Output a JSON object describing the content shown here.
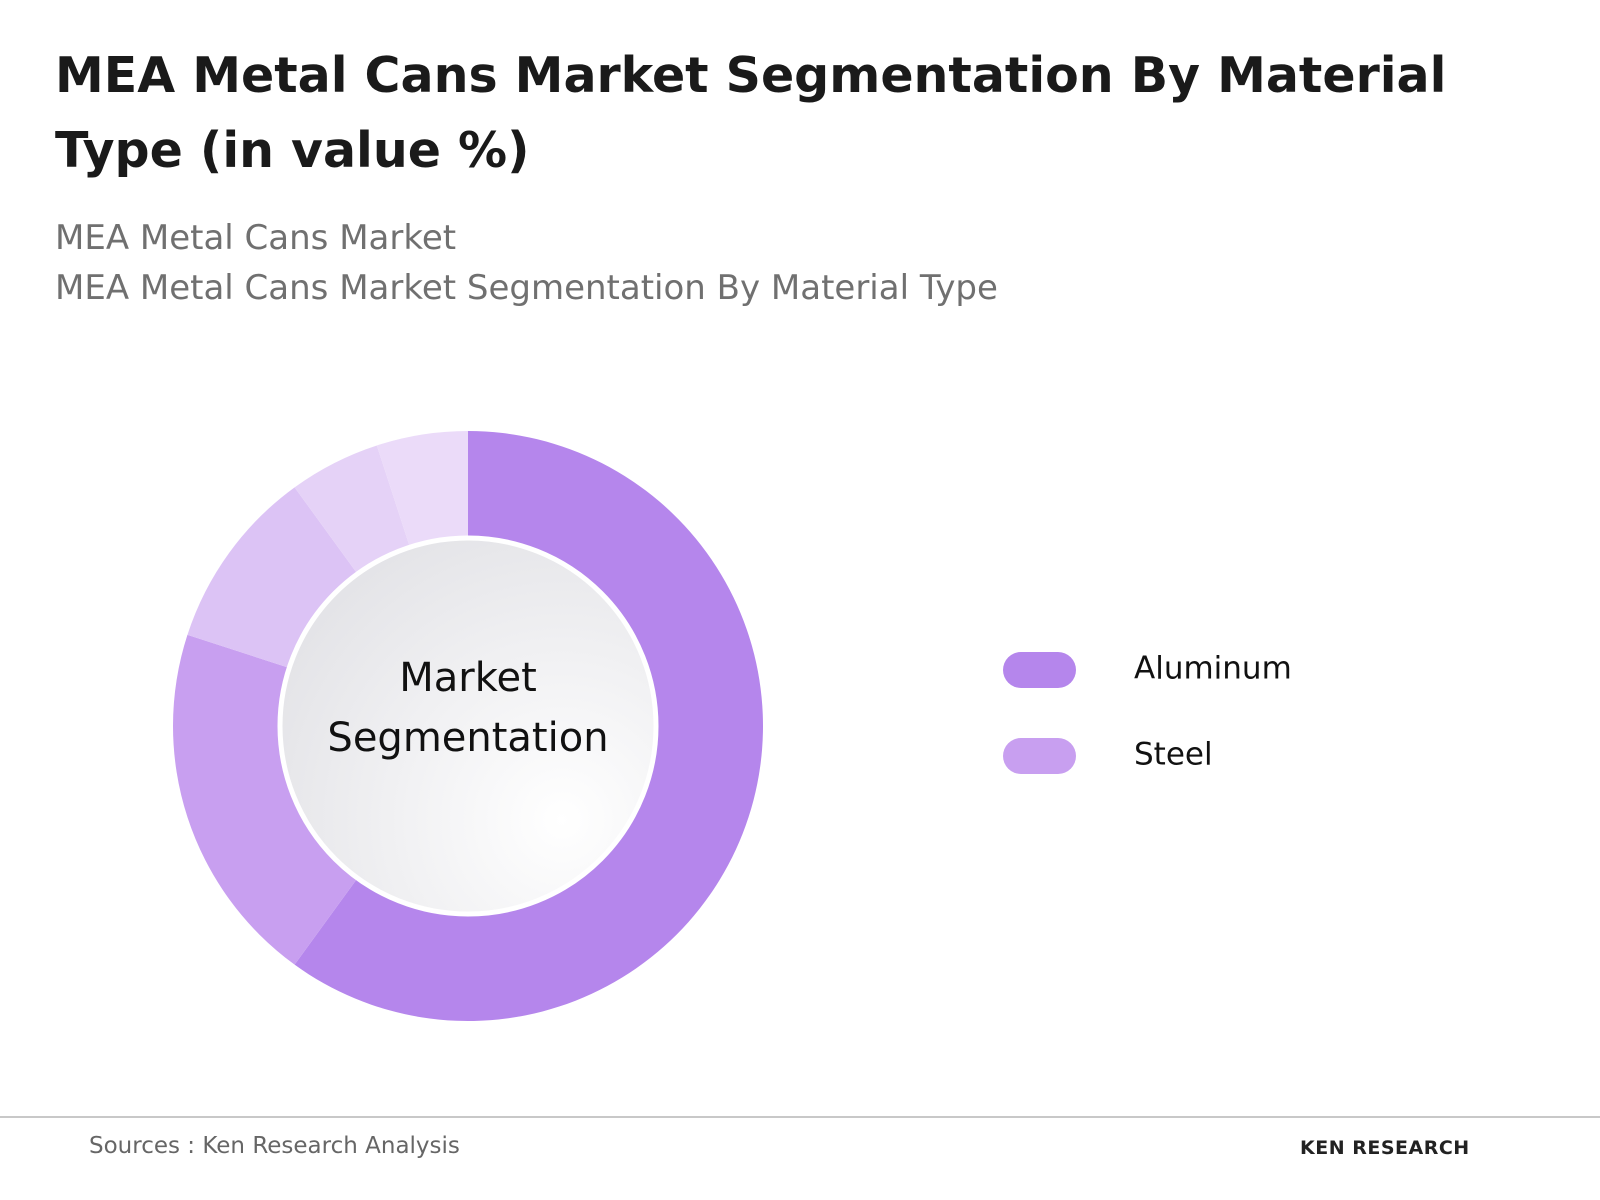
{
  "chart_data": {
    "type": "donut",
    "title": "MEA Metal Cans Market Segmentation By Material Type (in value %)",
    "subtitles": [
      "MEA Metal Cans Market",
      "MEA Metal Cans Market Segmentation By Material Type"
    ],
    "center_label": "Market Segmentation",
    "categories": [
      "Aluminum",
      "Steel",
      null,
      null,
      null
    ],
    "values": [
      60,
      20,
      10,
      5,
      5
    ],
    "colors": [
      "#b586ec",
      "#c89ff0",
      "#dcc3f5",
      "#e5d2f7",
      "#ebdbf9"
    ],
    "legend": "right",
    "source": "Sources : Ken Research Analysis",
    "logo": "KEN RESEARCH"
  }
}
